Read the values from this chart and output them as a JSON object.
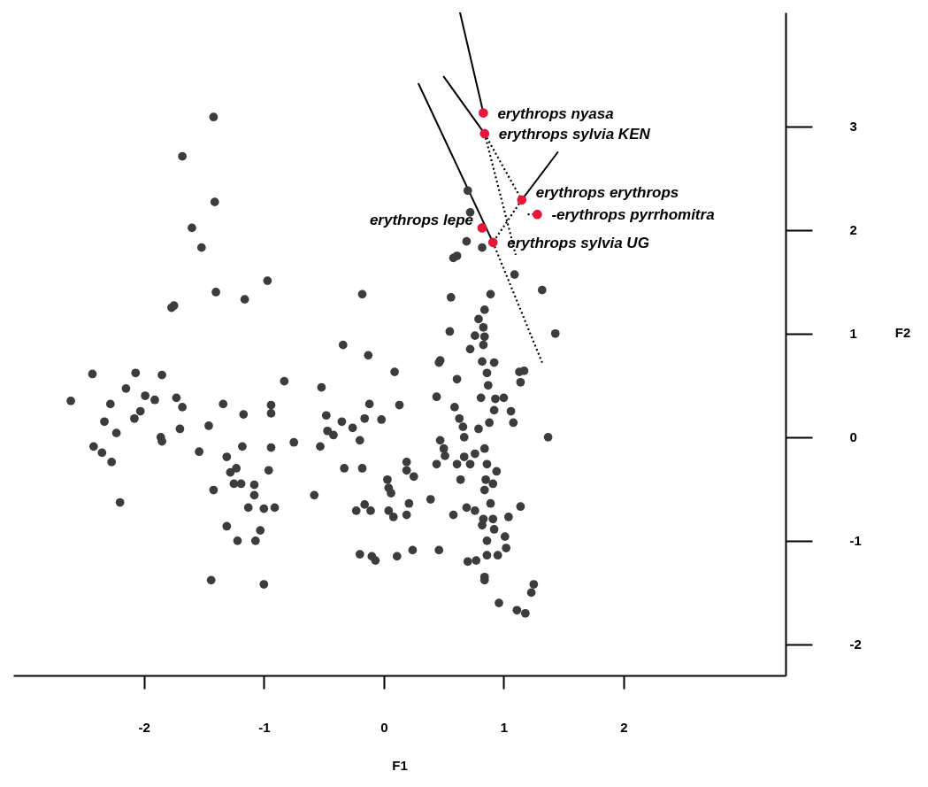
{
  "chart_data": {
    "type": "scatter",
    "xlabel": "F1",
    "ylabel": "F2",
    "xlim": [
      -3.09,
      3.35
    ],
    "ylim": [
      -2.3,
      4.1
    ],
    "xticks": [
      -2,
      -1,
      0,
      1,
      2
    ],
    "yticks": [
      -2,
      -1,
      0,
      1,
      2,
      3
    ],
    "grid": false,
    "marker": "circle",
    "series": [
      {
        "color": "#3c3c3c",
        "x": [
          -1.42,
          -1.68,
          -1.41,
          -1.6,
          -1.52,
          -0.97,
          -1.4,
          -1.16,
          -1.77,
          -1.75,
          -2.43,
          -2.07,
          -1.85,
          -2.61,
          -2.15,
          -1.99,
          -1.91,
          -1.73,
          -1.68,
          -2.28,
          -2.33,
          -2.03,
          -2.08,
          -2.23,
          -1.86,
          -1.85,
          -1.7,
          -2.42,
          -2.35,
          -2.27,
          -2.2,
          -0.83,
          -1.34,
          -1.17,
          -0.94,
          -0.94,
          -1.46,
          -0.75,
          -1.54,
          -1.18,
          -0.94,
          -1.31,
          -1.23,
          -1.28,
          -0.96,
          -1.25,
          -1.19,
          -1.08,
          -1.08,
          -1.42,
          -1.13,
          -1.0,
          -0.91,
          -1.31,
          -1.03,
          -1.22,
          -1.07,
          -1.44,
          -1.0,
          -0.18,
          0.56,
          0.89,
          1.09,
          1.32,
          1.43,
          0.84,
          0.79,
          0.83,
          0.76,
          0.84,
          0.83,
          0.72,
          0.55,
          -0.34,
          -0.13,
          0.09,
          -0.52,
          0.47,
          0.46,
          0.61,
          0.82,
          0.92,
          0.86,
          0.87,
          1.13,
          1.17,
          1.14,
          0.44,
          0.81,
          0.93,
          1.0,
          0.92,
          1.06,
          0.59,
          -0.12,
          0.13,
          -0.48,
          -0.35,
          -0.16,
          -0.02,
          -0.26,
          -0.47,
          -0.42,
          0.63,
          0.66,
          0.79,
          0.88,
          1.08,
          1.37,
          0.47,
          0.67,
          -0.2,
          0.7,
          0.72,
          0.69,
          0.61,
          0.58,
          0.82,
          -0.53,
          0.5,
          0.51,
          0.67,
          0.76,
          0.84,
          0.44,
          0.61,
          0.72,
          0.86,
          0.94,
          0.19,
          0.19,
          0.25,
          -0.33,
          -0.18,
          0.03,
          0.04,
          0.06,
          0.64,
          0.85,
          0.91,
          0.84,
          -0.58,
          0.39,
          0.21,
          -0.23,
          -0.16,
          -0.11,
          0.04,
          0.08,
          0.19,
          0.58,
          0.69,
          0.76,
          0.89,
          1.14,
          0.83,
          0.91,
          0.82,
          0.92,
          1.04,
          1.01,
          0.86,
          1.02,
          0.95,
          0.86,
          0.7,
          0.77,
          -0.2,
          -0.1,
          -0.07,
          0.11,
          0.24,
          0.46,
          0.84,
          0.84,
          1.25,
          1.23,
          0.96,
          1.11,
          1.18
        ],
        "values": [
          3.09,
          2.71,
          2.27,
          2.02,
          1.83,
          1.51,
          1.4,
          1.33,
          1.25,
          1.27,
          0.61,
          0.62,
          0.6,
          0.35,
          0.47,
          0.4,
          0.36,
          0.38,
          0.29,
          0.32,
          0.15,
          0.25,
          0.18,
          0.04,
          0.0,
          -0.04,
          0.08,
          -0.09,
          -0.15,
          -0.24,
          -0.63,
          0.54,
          0.32,
          0.22,
          0.31,
          0.23,
          0.11,
          -0.05,
          -0.14,
          -0.09,
          -0.1,
          -0.19,
          -0.3,
          -0.34,
          -0.32,
          -0.45,
          -0.45,
          -0.46,
          -0.56,
          -0.51,
          -0.68,
          -0.69,
          -0.68,
          -0.86,
          -0.9,
          -1.0,
          -1.0,
          -1.38,
          -1.42,
          1.38,
          1.35,
          1.38,
          1.57,
          1.42,
          1.0,
          1.23,
          1.14,
          1.06,
          0.98,
          0.97,
          0.89,
          0.85,
          1.02,
          0.89,
          0.79,
          0.63,
          0.48,
          0.74,
          0.72,
          0.56,
          0.73,
          0.72,
          0.62,
          0.5,
          0.63,
          0.64,
          0.53,
          0.39,
          0.38,
          0.37,
          0.38,
          0.26,
          0.25,
          0.29,
          0.32,
          0.31,
          0.21,
          0.15,
          0.18,
          0.17,
          0.09,
          0.06,
          0.02,
          0.18,
          0.1,
          0.08,
          0.14,
          0.14,
          0.0,
          -0.03,
          0.0,
          -0.03,
          2.38,
          2.17,
          1.89,
          1.75,
          1.73,
          1.83,
          -0.09,
          -0.11,
          -0.18,
          -0.19,
          -0.16,
          -0.11,
          -0.26,
          -0.26,
          -0.26,
          -0.26,
          -0.33,
          -0.24,
          -0.32,
          -0.38,
          -0.3,
          -0.3,
          -0.41,
          -0.49,
          -0.54,
          -0.41,
          -0.41,
          -0.45,
          -0.51,
          -0.56,
          -0.6,
          -0.64,
          -0.71,
          -0.65,
          -0.71,
          -0.71,
          -0.77,
          -0.75,
          -0.75,
          -0.68,
          -0.71,
          -0.64,
          -0.67,
          -0.79,
          -0.79,
          -0.85,
          -0.89,
          -0.77,
          -0.96,
          -1.0,
          -1.07,
          -1.14,
          -1.14,
          -1.2,
          -1.19,
          -1.13,
          -1.15,
          -1.19,
          -1.15,
          -1.09,
          -1.09,
          -1.35,
          -1.38,
          -1.42,
          -1.5,
          -1.6,
          -1.67,
          -1.7
        ]
      },
      {
        "type": "line",
        "marker": "none",
        "color": "#000000",
        "line_style": "solid",
        "x": [
          0.635,
          0.83
        ],
        "values": [
          4.1,
          3.13
        ]
      },
      {
        "type": "line",
        "marker": "none",
        "color": "#000000",
        "line_style": "solid",
        "x": [
          0.5,
          0.84
        ],
        "values": [
          3.48,
          2.93
        ]
      },
      {
        "type": "line",
        "marker": "none",
        "color": "#000000",
        "line_style": "solid",
        "x": [
          0.29,
          0.91
        ],
        "values": [
          3.41,
          1.88
        ]
      },
      {
        "type": "line",
        "marker": "none",
        "color": "#000000",
        "line_style": "solid",
        "x": [
          1.45,
          1.15
        ],
        "values": [
          2.75,
          2.29
        ]
      },
      {
        "type": "line",
        "marker": "none",
        "color": "#000000",
        "line_style": "dotted",
        "x": [
          0.84,
          1.15
        ],
        "values": [
          2.93,
          2.29
        ]
      },
      {
        "type": "line",
        "marker": "none",
        "color": "#000000",
        "line_style": "dotted",
        "x": [
          0.84,
          1.1
        ],
        "values": [
          2.93,
          1.76
        ]
      },
      {
        "type": "line",
        "marker": "none",
        "color": "#000000",
        "line_style": "dotted",
        "x": [
          1.15,
          0.91
        ],
        "values": [
          2.29,
          1.88
        ]
      },
      {
        "type": "line",
        "marker": "none",
        "color": "#000000",
        "line_style": "dotted",
        "x": [
          1.2,
          1.28
        ],
        "values": [
          2.15,
          2.15
        ]
      },
      {
        "type": "line",
        "marker": "none",
        "color": "#000000",
        "line_style": "dotted",
        "x": [
          0.91,
          1.32
        ],
        "values": [
          1.88,
          0.72
        ]
      },
      {
        "color": "#e8173a",
        "x": [
          0.83,
          0.84,
          1.15,
          1.28,
          0.82,
          0.91
        ],
        "values": [
          3.13,
          2.93,
          2.29,
          2.15,
          2.02,
          1.88
        ]
      }
    ],
    "annotations": [
      {
        "text": "erythrops nyasa",
        "x": 0.83,
        "y": 3.13
      },
      {
        "text": "erythrops sylvia KEN",
        "x": 0.84,
        "y": 2.93
      },
      {
        "text": "erythrops erythrops",
        "x": 1.15,
        "y": 2.29
      },
      {
        "text": "-erythrops pyrrhomitra",
        "x": 1.28,
        "y": 2.15
      },
      {
        "text": "erythrops lepe",
        "x": 0.82,
        "y": 2.02
      },
      {
        "text": "erythrops sylvia UG",
        "x": 0.91,
        "y": 1.88
      }
    ]
  }
}
